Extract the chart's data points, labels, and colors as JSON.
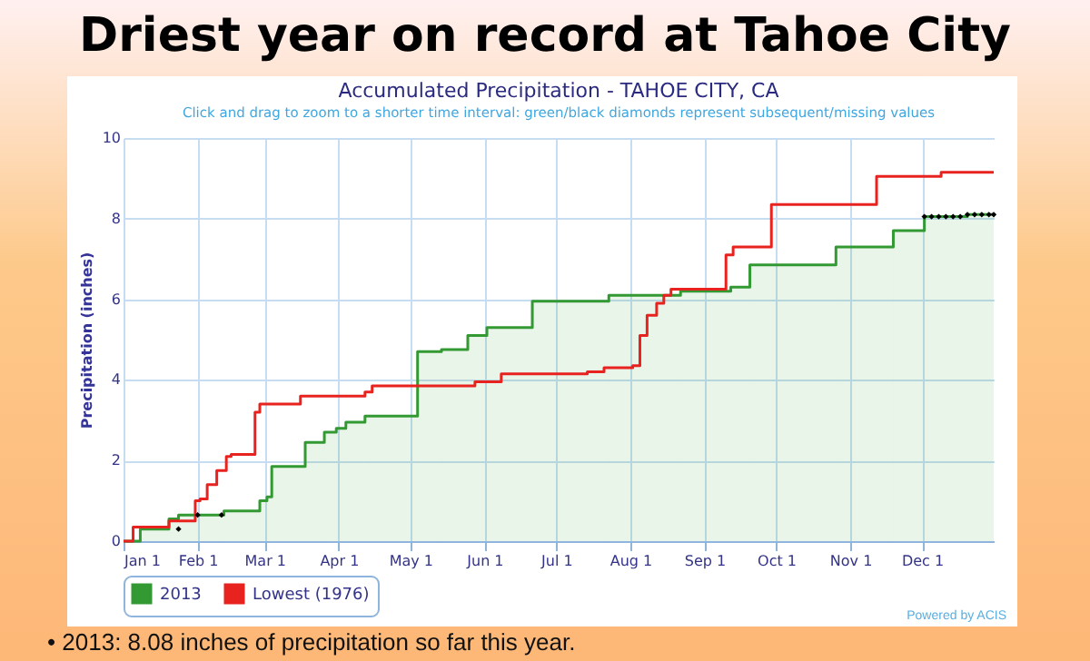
{
  "chart_data": {
    "type": "step",
    "title": "Driest year on record at Tahoe City",
    "subtitle": "Accumulated Precipitation - TAHOE CITY, CA",
    "ylabel": "Precipitation (inches)",
    "annotations": [
      "Click and drag to zoom to a shorter time interval: green/black diamonds represent subsequent/missing values",
      "Powered by ACIS",
      "•  2013: 8.08 inches of precipitation so far this year."
    ],
    "xlim": [
      "2013-01-01",
      "2013-12-31"
    ],
    "xticks": [
      {
        "value": "2013-01-01",
        "label": "Jan 1"
      },
      {
        "value": "2013-02-01",
        "label": "Feb 1"
      },
      {
        "value": "2013-03-01",
        "label": "Mar 1"
      },
      {
        "value": "2013-04-01",
        "label": "Apr 1"
      },
      {
        "value": "2013-05-01",
        "label": "May 1"
      },
      {
        "value": "2013-06-01",
        "label": "Jun 1"
      },
      {
        "value": "2013-07-01",
        "label": "Jul 1"
      },
      {
        "value": "2013-08-01",
        "label": "Aug 1"
      },
      {
        "value": "2013-09-01",
        "label": "Sep 1"
      },
      {
        "value": "2013-10-01",
        "label": "Oct 1"
      },
      {
        "value": "2013-11-01",
        "label": "Nov 1"
      },
      {
        "value": "2013-12-01",
        "label": "Dec 1"
      }
    ],
    "ylim": [
      0,
      10
    ],
    "yticks": [
      0,
      2,
      4,
      6,
      8,
      10
    ],
    "grid": true,
    "legend": "bottom",
    "series": [
      {
        "name": "2013",
        "type": "area",
        "color": "#339933",
        "x": [
          "2013-01-01",
          "2013-01-08",
          "2013-01-20",
          "2013-01-24",
          "2013-02-12",
          "2013-02-27",
          "2013-03-02",
          "2013-03-04",
          "2013-03-18",
          "2013-03-26",
          "2013-03-31",
          "2013-04-04",
          "2013-04-12",
          "2013-05-04",
          "2013-05-14",
          "2013-05-25",
          "2013-06-02",
          "2013-06-21",
          "2013-07-23",
          "2013-08-22",
          "2013-09-12",
          "2013-09-20",
          "2013-10-26",
          "2013-11-19",
          "2013-12-02",
          "2013-12-20",
          "2013-12-31"
        ],
        "values": [
          0,
          0.3,
          0.55,
          0.65,
          0.75,
          1.0,
          1.1,
          1.85,
          2.45,
          2.7,
          2.8,
          2.95,
          3.1,
          4.7,
          4.75,
          5.1,
          5.3,
          5.95,
          6.1,
          6.2,
          6.3,
          6.85,
          7.3,
          7.7,
          8.05,
          8.1,
          8.1
        ]
      },
      {
        "name": "Lowest (1976)",
        "color": "#e8231f",
        "x": [
          "2013-01-01",
          "2013-01-05",
          "2013-01-20",
          "2013-01-31",
          "2013-02-02",
          "2013-02-05",
          "2013-02-09",
          "2013-02-13",
          "2013-02-15",
          "2013-02-25",
          "2013-02-27",
          "2013-03-16",
          "2013-04-12",
          "2013-04-15",
          "2013-05-28",
          "2013-06-08",
          "2013-07-14",
          "2013-07-21",
          "2013-08-02",
          "2013-08-05",
          "2013-08-08",
          "2013-08-12",
          "2013-08-15",
          "2013-08-18",
          "2013-09-10",
          "2013-09-13",
          "2013-09-29",
          "2013-11-12",
          "2013-12-09",
          "2013-12-31"
        ],
        "values": [
          0,
          0.35,
          0.5,
          1.0,
          1.05,
          1.4,
          1.75,
          2.1,
          2.15,
          3.2,
          3.4,
          3.6,
          3.7,
          3.85,
          3.95,
          4.15,
          4.2,
          4.3,
          4.35,
          5.1,
          5.6,
          5.9,
          6.1,
          6.25,
          7.1,
          7.3,
          8.35,
          9.05,
          9.15,
          9.15
        ]
      },
      {
        "type": "scatter",
        "marker": "diamond",
        "color": "#000000",
        "x": [
          "2013-01-24",
          "2013-02-01",
          "2013-02-11",
          "2013-12-02",
          "2013-12-05",
          "2013-12-08",
          "2013-12-11",
          "2013-12-14",
          "2013-12-17",
          "2013-12-20",
          "2013-12-23",
          "2013-12-26",
          "2013-12-29",
          "2013-12-31"
        ],
        "values": [
          0.3,
          0.65,
          0.65,
          8.05,
          8.05,
          8.05,
          8.05,
          8.05,
          8.05,
          8.1,
          8.1,
          8.1,
          8.1,
          8.1
        ]
      }
    ]
  }
}
